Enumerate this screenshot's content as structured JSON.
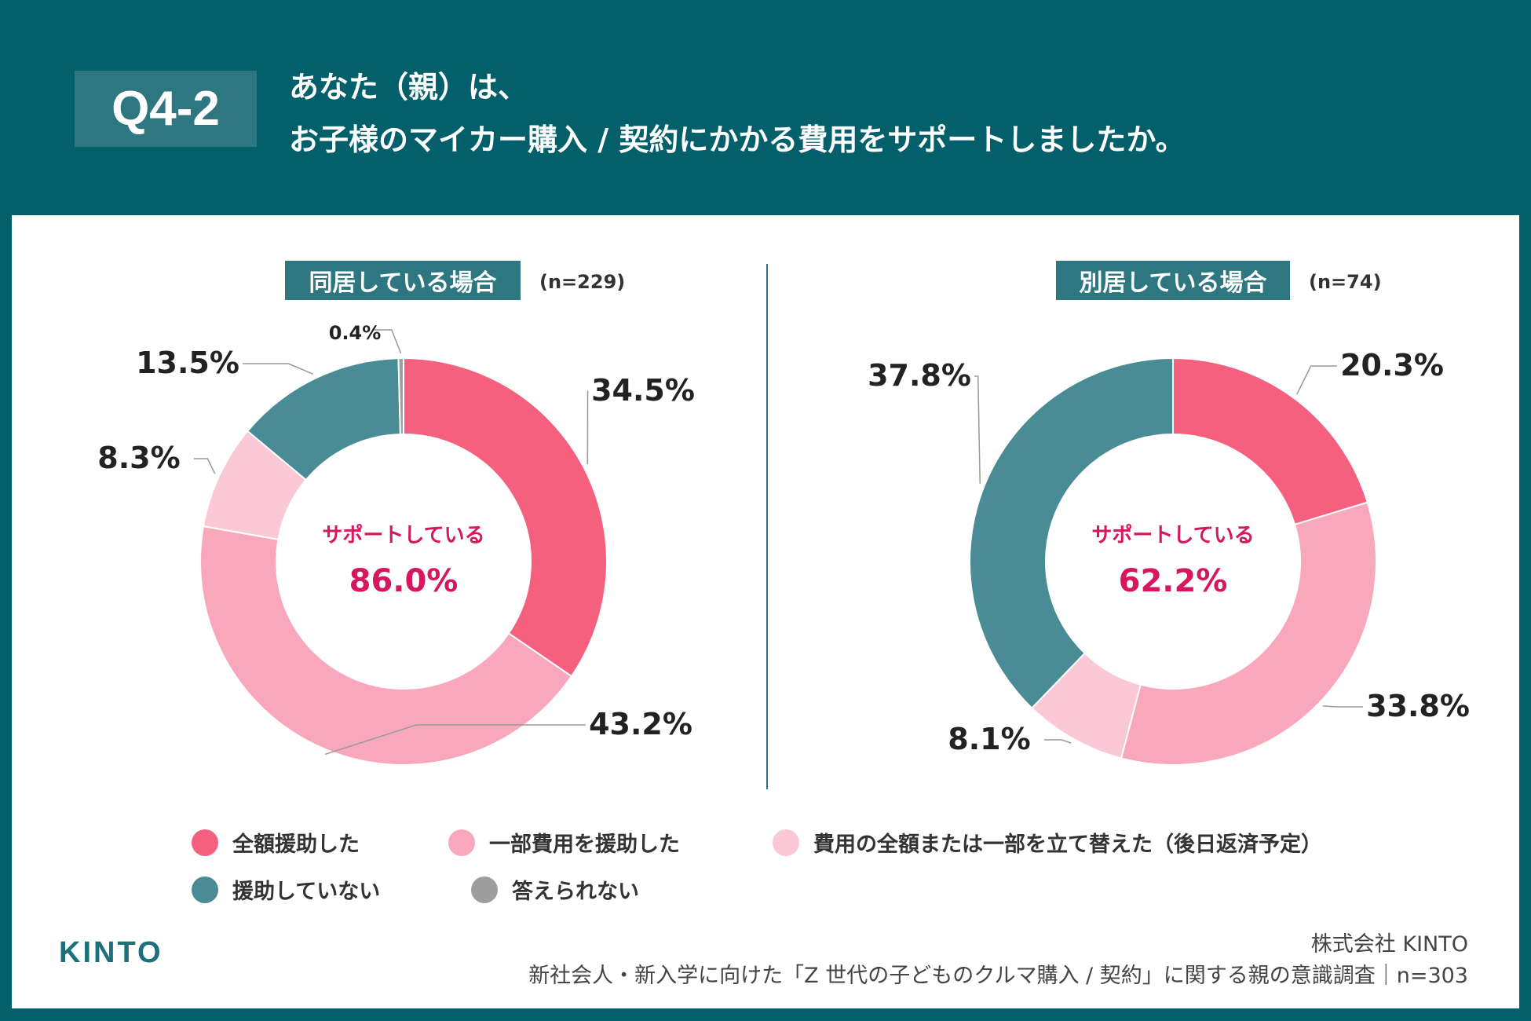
{
  "header": {
    "question_no": "Q4-2",
    "title_line1": "あなた（親）は、",
    "title_line2": "お子様のマイカー購入 / 契約にかかる費用をサポートしましたか。"
  },
  "colors": {
    "background": "#03606B",
    "full_support": "#F5607E",
    "partial_support": "#F9A8BC",
    "advance_payment": "#FBC8D5",
    "no_support": "#4A8C96",
    "no_answer": "#9E9E9E",
    "center_text": "#D6175F"
  },
  "chart_data": [
    {
      "type": "pie",
      "donut": true,
      "title": "同居している場合",
      "n_label": "(n=229)",
      "center_label": "サポートしている",
      "center_value": "86.0%",
      "categories": [
        "全額援助した",
        "一部費用を援助した",
        "費用の全額または一部を立て替えた（後日返済予定）",
        "援助していない",
        "答えられない"
      ],
      "values": [
        34.5,
        43.2,
        8.3,
        13.5,
        0.4
      ],
      "labels": [
        "34.5%",
        "43.2%",
        "8.3%",
        "13.5%",
        "0.4%"
      ]
    },
    {
      "type": "pie",
      "donut": true,
      "title": "別居している場合",
      "n_label": "(n=74)",
      "center_label": "サポートしている",
      "center_value": "62.2%",
      "categories": [
        "全額援助した",
        "一部費用を援助した",
        "費用の全額または一部を立て替えた（後日返済予定）",
        "援助していない"
      ],
      "values": [
        20.3,
        33.8,
        8.1,
        37.8
      ],
      "labels": [
        "20.3%",
        "33.8%",
        "8.1%",
        "37.8%"
      ]
    }
  ],
  "legend": [
    {
      "label": "全額援助した",
      "color": "#F5607E"
    },
    {
      "label": "一部費用を援助した",
      "color": "#F9A8BC"
    },
    {
      "label": "費用の全額または一部を立て替えた（後日返済予定）",
      "color": "#FBC8D5"
    },
    {
      "label": "援助していない",
      "color": "#4A8C96"
    },
    {
      "label": "答えられない",
      "color": "#9E9E9E"
    }
  ],
  "footer": {
    "logo": "KINTO",
    "company": "株式会社 KINTO",
    "survey": "新社会人・新入学に向けた「Z 世代の子どものクルマ購入 / 契約」に関する親の意識調査｜n=303"
  }
}
